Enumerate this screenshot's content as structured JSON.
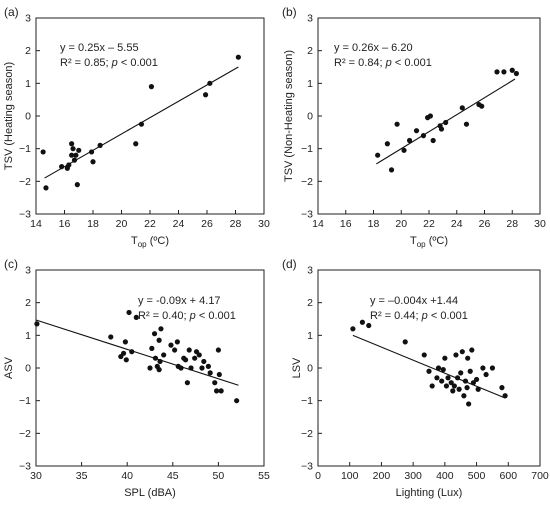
{
  "chart_data": [
    {
      "type": "scatter",
      "panel_label": "(a)",
      "xlabel": "Top (ºC)",
      "xlabel_main": "T",
      "xlabel_sub": "op",
      "xlabel_rest": " (ºC)",
      "ylabel": "TSV (Heating season)",
      "xlim": [
        14,
        30
      ],
      "ylim": [
        -3,
        3
      ],
      "xticks": [
        14,
        16,
        18,
        20,
        22,
        24,
        26,
        28,
        30
      ],
      "yticks": [
        -3,
        -2,
        -1,
        0,
        1,
        2,
        3
      ],
      "equation": "y = 0.25x – 5.55",
      "r2_text": "R² = 0.85; p < 0.001",
      "r2_prefix": "R² = 0.85; ",
      "r2_p": "p",
      "r2_suffix": " < 0.001",
      "fit": {
        "slope": 0.25,
        "intercept": -5.55,
        "x_range": [
          14.6,
          28.2
        ]
      },
      "points": [
        [
          14.5,
          -1.1
        ],
        [
          14.7,
          -2.2
        ],
        [
          15.8,
          -1.55
        ],
        [
          16.2,
          -1.6
        ],
        [
          16.3,
          -1.5
        ],
        [
          16.5,
          -0.85
        ],
        [
          16.5,
          -1.2
        ],
        [
          16.6,
          -1.0
        ],
        [
          16.7,
          -1.35
        ],
        [
          16.8,
          -1.2
        ],
        [
          16.9,
          -2.1
        ],
        [
          17.0,
          -1.05
        ],
        [
          17.9,
          -1.1
        ],
        [
          18.0,
          -1.4
        ],
        [
          18.5,
          -0.9
        ],
        [
          21.0,
          -0.85
        ],
        [
          21.4,
          -0.25
        ],
        [
          22.1,
          0.9
        ],
        [
          25.9,
          0.65
        ],
        [
          26.2,
          1.0
        ],
        [
          28.2,
          1.8
        ]
      ]
    },
    {
      "type": "scatter",
      "panel_label": "(b)",
      "xlabel": "Top (ºC)",
      "xlabel_main": "T",
      "xlabel_sub": "op",
      "xlabel_rest": " (ºC)",
      "ylabel": "TSV (Non-Heating season)",
      "xlim": [
        14,
        30
      ],
      "ylim": [
        -3,
        3
      ],
      "xticks": [
        14,
        16,
        18,
        20,
        22,
        24,
        26,
        28,
        30
      ],
      "yticks": [
        -3,
        -2,
        -1,
        0,
        1,
        2,
        3
      ],
      "equation": "y = 0.26x – 6.20",
      "r2_text": "R² = 0.84; p < 0.001",
      "r2_prefix": "R² = 0.84; ",
      "r2_p": "p",
      "r2_suffix": " < 0.001",
      "fit": {
        "slope": 0.26,
        "intercept": -6.2,
        "x_range": [
          18.2,
          28.2
        ]
      },
      "points": [
        [
          18.3,
          -1.2
        ],
        [
          19.0,
          -0.85
        ],
        [
          19.3,
          -1.65
        ],
        [
          19.7,
          -0.25
        ],
        [
          20.2,
          -1.05
        ],
        [
          20.6,
          -0.75
        ],
        [
          21.1,
          -0.45
        ],
        [
          21.6,
          -0.6
        ],
        [
          21.9,
          -0.05
        ],
        [
          22.1,
          0.0
        ],
        [
          22.3,
          -0.75
        ],
        [
          22.8,
          -0.3
        ],
        [
          22.9,
          -0.4
        ],
        [
          23.2,
          -0.2
        ],
        [
          24.4,
          0.25
        ],
        [
          24.7,
          -0.25
        ],
        [
          25.6,
          0.35
        ],
        [
          25.8,
          0.3
        ],
        [
          26.9,
          1.35
        ],
        [
          27.4,
          1.35
        ],
        [
          28.0,
          1.4
        ],
        [
          28.3,
          1.3
        ]
      ]
    },
    {
      "type": "scatter",
      "panel_label": "(c)",
      "xlabel": "SPL (dBA)",
      "ylabel": "ASV",
      "xlim": [
        30,
        55
      ],
      "ylim": [
        -3,
        3
      ],
      "xticks": [
        30,
        35,
        40,
        45,
        50,
        55
      ],
      "yticks": [
        -3,
        -2,
        -1,
        0,
        1,
        2,
        3
      ],
      "equation": "y = -0.09x + 4.17",
      "r2_text": "R² = 0.40; p < 0.001",
      "r2_prefix": "R² = 0.40; ",
      "r2_p": "p",
      "r2_suffix": " < 0.001",
      "fit": {
        "slope": -0.09,
        "intercept": 4.17,
        "x_range": [
          30,
          52.2
        ]
      },
      "points": [
        [
          30.1,
          1.35
        ],
        [
          38.2,
          0.95
        ],
        [
          39.3,
          0.35
        ],
        [
          39.6,
          0.45
        ],
        [
          39.8,
          0.8
        ],
        [
          39.9,
          0.25
        ],
        [
          40.2,
          1.7
        ],
        [
          40.5,
          0.5
        ],
        [
          41.0,
          1.55
        ],
        [
          42.5,
          0.0
        ],
        [
          42.7,
          0.6
        ],
        [
          43.0,
          1.05
        ],
        [
          43.1,
          0.3
        ],
        [
          43.3,
          0.05
        ],
        [
          43.5,
          -0.05
        ],
        [
          43.5,
          0.85
        ],
        [
          43.6,
          0.2
        ],
        [
          43.7,
          1.2
        ],
        [
          44.0,
          0.4
        ],
        [
          44.8,
          0.7
        ],
        [
          45.2,
          0.55
        ],
        [
          45.5,
          0.8
        ],
        [
          45.6,
          0.05
        ],
        [
          45.9,
          0.0
        ],
        [
          46.2,
          0.3
        ],
        [
          46.4,
          0.25
        ],
        [
          46.6,
          -0.45
        ],
        [
          46.8,
          0.55
        ],
        [
          47.0,
          0.0
        ],
        [
          47.4,
          0.3
        ],
        [
          47.6,
          0.5
        ],
        [
          47.9,
          0.4
        ],
        [
          48.2,
          0.0
        ],
        [
          48.4,
          0.2
        ],
        [
          48.9,
          0.05
        ],
        [
          49.1,
          -0.15
        ],
        [
          49.6,
          -0.45
        ],
        [
          49.8,
          -0.7
        ],
        [
          50.0,
          0.55
        ],
        [
          50.1,
          -0.2
        ],
        [
          50.3,
          -0.7
        ],
        [
          52.0,
          -1.0
        ]
      ]
    },
    {
      "type": "scatter",
      "panel_label": "(d)",
      "xlabel": "Lighting (Lux)",
      "ylabel": "LSV",
      "xlim": [
        0,
        700
      ],
      "ylim": [
        -3,
        3
      ],
      "xticks": [
        0,
        100,
        200,
        300,
        400,
        500,
        600,
        700
      ],
      "yticks": [
        -3,
        -2,
        -1,
        0,
        1,
        2,
        3
      ],
      "equation": "y = –0.004x +1.44",
      "r2_text": "R² = 0.44; p < 0.001",
      "r2_prefix": "R² = 0.44; ",
      "r2_p": "p",
      "r2_suffix": " < 0.001",
      "fit": {
        "slope": -0.004,
        "intercept": 1.44,
        "x_range": [
          110,
          590
        ]
      },
      "points": [
        [
          110,
          1.2
        ],
        [
          140,
          1.4
        ],
        [
          160,
          1.3
        ],
        [
          275,
          0.8
        ],
        [
          335,
          0.4
        ],
        [
          350,
          -0.1
        ],
        [
          360,
          -0.55
        ],
        [
          375,
          -0.3
        ],
        [
          380,
          0.0
        ],
        [
          390,
          -0.4
        ],
        [
          395,
          -0.05
        ],
        [
          400,
          0.3
        ],
        [
          405,
          -0.55
        ],
        [
          410,
          -0.3
        ],
        [
          420,
          -0.45
        ],
        [
          425,
          -0.7
        ],
        [
          430,
          -0.55
        ],
        [
          435,
          0.4
        ],
        [
          440,
          -0.3
        ],
        [
          445,
          -0.65
        ],
        [
          450,
          -0.15
        ],
        [
          455,
          0.5
        ],
        [
          460,
          -0.85
        ],
        [
          465,
          -0.4
        ],
        [
          470,
          -0.6
        ],
        [
          472,
          0.3
        ],
        [
          475,
          -1.1
        ],
        [
          480,
          -0.1
        ],
        [
          485,
          0.55
        ],
        [
          490,
          -0.45
        ],
        [
          500,
          -0.35
        ],
        [
          505,
          -0.65
        ],
        [
          520,
          0.0
        ],
        [
          530,
          -0.2
        ],
        [
          550,
          0.0
        ],
        [
          580,
          -0.6
        ],
        [
          590,
          -0.85
        ]
      ]
    }
  ]
}
